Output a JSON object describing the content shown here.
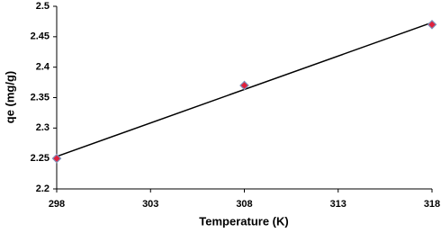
{
  "chart_data": {
    "type": "scatter",
    "x_label": "Temperature (K)",
    "y_label": "qe (mg/g)",
    "series": [
      {
        "color": "#e0203c",
        "x": [
          298,
          308,
          318
        ],
        "values": [
          2.25,
          2.37,
          2.47
        ]
      }
    ],
    "xlim": [
      298,
      318
    ],
    "xticks": [
      298,
      303,
      308,
      313,
      318
    ],
    "ylim": [
      2.2,
      2.5
    ],
    "yticks": [
      2.2,
      2.25,
      2.3,
      2.35,
      2.4,
      2.45,
      2.5
    ],
    "trendline": true,
    "grid": false
  }
}
